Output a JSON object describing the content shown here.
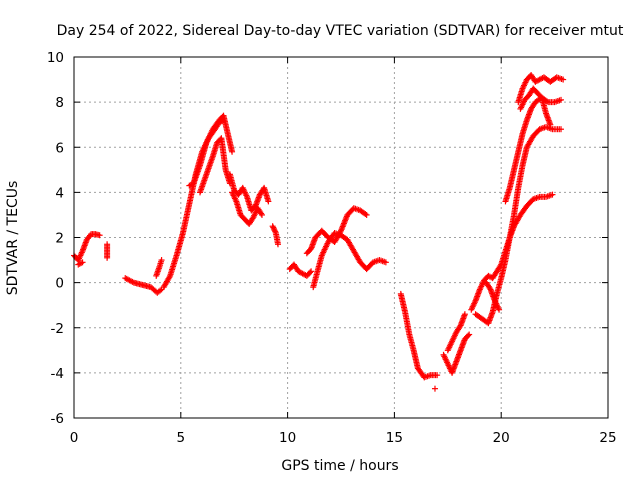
{
  "chart_data": {
    "type": "scatter",
    "title": "Day 254 of 2022, Sidereal Day-to-day VTEC variation (SDTVAR) for receiver mtut",
    "xlabel": "GPS time / hours",
    "ylabel": "SDTVAR / TECUs",
    "xlim": [
      0,
      25
    ],
    "ylim": [
      -6,
      10
    ],
    "x_ticks": [
      0,
      5,
      10,
      15,
      20,
      25
    ],
    "x_tick_labels": [
      "0",
      "5",
      "10",
      "15",
      "20",
      "25"
    ],
    "y_ticks": [
      -6,
      -4,
      -2,
      0,
      2,
      4,
      6,
      8,
      10
    ],
    "y_tick_labels": [
      "-6",
      "-4",
      "-2",
      "0",
      "2",
      "4",
      "6",
      "8",
      "10"
    ],
    "grid": true,
    "marker": "+",
    "color": "#ff0000",
    "series": [
      {
        "name": "s1",
        "points": [
          [
            0.0,
            1.2
          ],
          [
            0.2,
            1.0
          ],
          [
            0.4,
            1.4
          ],
          [
            0.6,
            1.9
          ],
          [
            0.8,
            2.15
          ],
          [
            1.0,
            2.15
          ],
          [
            1.2,
            2.1
          ]
        ]
      },
      {
        "name": "s1b",
        "points": [
          [
            0.2,
            0.8
          ],
          [
            0.4,
            0.9
          ]
        ]
      },
      {
        "name": "s2",
        "points": [
          [
            1.55,
            1.7
          ],
          [
            1.55,
            1.5
          ],
          [
            1.55,
            1.3
          ],
          [
            1.55,
            1.1
          ]
        ]
      },
      {
        "name": "s3",
        "points": [
          [
            2.4,
            0.2
          ],
          [
            2.8,
            0.0
          ],
          [
            3.2,
            -0.1
          ],
          [
            3.6,
            -0.2
          ],
          [
            3.9,
            -0.45
          ],
          [
            4.1,
            -0.3
          ]
        ]
      },
      {
        "name": "s3b",
        "points": [
          [
            3.85,
            0.3
          ],
          [
            4.0,
            0.7
          ],
          [
            4.1,
            1.0
          ]
        ]
      },
      {
        "name": "s4",
        "points": [
          [
            4.2,
            -0.2
          ],
          [
            4.5,
            0.3
          ],
          [
            4.8,
            1.2
          ],
          [
            5.1,
            2.2
          ],
          [
            5.4,
            3.5
          ],
          [
            5.7,
            4.8
          ],
          [
            6.0,
            5.8
          ],
          [
            6.3,
            6.4
          ],
          [
            6.6,
            6.8
          ],
          [
            6.8,
            7.1
          ],
          [
            7.0,
            7.2
          ]
        ]
      },
      {
        "name": "s5",
        "points": [
          [
            5.4,
            4.3
          ],
          [
            5.6,
            4.4
          ],
          [
            5.9,
            5.2
          ],
          [
            6.2,
            6.2
          ],
          [
            6.5,
            6.8
          ],
          [
            6.8,
            7.2
          ],
          [
            7.0,
            7.4
          ],
          [
            7.2,
            6.6
          ],
          [
            7.4,
            5.8
          ]
        ]
      },
      {
        "name": "s6",
        "points": [
          [
            5.9,
            4.0
          ],
          [
            6.2,
            4.8
          ],
          [
            6.5,
            5.6
          ],
          [
            6.7,
            6.2
          ],
          [
            6.9,
            6.4
          ],
          [
            7.1,
            5.0
          ],
          [
            7.3,
            4.4
          ]
        ]
      },
      {
        "name": "s7",
        "points": [
          [
            7.3,
            4.8
          ],
          [
            7.5,
            4.1
          ],
          [
            7.7,
            3.9
          ],
          [
            7.9,
            4.2
          ],
          [
            8.1,
            3.8
          ],
          [
            8.3,
            3.2
          ],
          [
            8.5,
            3.4
          ],
          [
            8.7,
            3.9
          ],
          [
            8.9,
            4.2
          ],
          [
            9.1,
            3.6
          ]
        ]
      },
      {
        "name": "s8",
        "points": [
          [
            7.4,
            4.0
          ],
          [
            7.6,
            3.6
          ],
          [
            7.8,
            3.0
          ],
          [
            8.0,
            2.8
          ],
          [
            8.2,
            2.6
          ],
          [
            8.4,
            2.9
          ],
          [
            8.6,
            3.3
          ],
          [
            8.8,
            3.0
          ]
        ]
      },
      {
        "name": "s9",
        "points": [
          [
            9.3,
            2.5
          ],
          [
            9.45,
            2.2
          ],
          [
            9.55,
            1.7
          ]
        ]
      },
      {
        "name": "s10",
        "points": [
          [
            10.1,
            0.6
          ],
          [
            10.3,
            0.8
          ],
          [
            10.5,
            0.5
          ],
          [
            10.7,
            0.4
          ],
          [
            10.9,
            0.3
          ],
          [
            11.1,
            0.5
          ]
        ]
      },
      {
        "name": "s11",
        "points": [
          [
            10.9,
            1.3
          ],
          [
            11.1,
            1.5
          ],
          [
            11.3,
            2.0
          ],
          [
            11.6,
            2.3
          ],
          [
            11.9,
            2.0
          ],
          [
            12.2,
            1.8
          ],
          [
            12.5,
            2.3
          ],
          [
            12.8,
            3.0
          ],
          [
            13.1,
            3.3
          ],
          [
            13.4,
            3.2
          ],
          [
            13.7,
            3.0
          ]
        ]
      },
      {
        "name": "s12",
        "points": [
          [
            11.2,
            -0.2
          ],
          [
            11.4,
            0.5
          ],
          [
            11.6,
            1.2
          ],
          [
            11.9,
            1.8
          ],
          [
            12.2,
            2.2
          ],
          [
            12.5,
            2.1
          ],
          [
            12.8,
            1.9
          ],
          [
            13.1,
            1.4
          ],
          [
            13.4,
            0.9
          ],
          [
            13.7,
            0.6
          ],
          [
            14.0,
            0.9
          ],
          [
            14.3,
            1.0
          ],
          [
            14.6,
            0.9
          ]
        ]
      },
      {
        "name": "s13",
        "points": [
          [
            15.3,
            -0.5
          ],
          [
            15.5,
            -1.3
          ],
          [
            15.7,
            -2.3
          ],
          [
            15.9,
            -3.0
          ],
          [
            16.1,
            -3.8
          ],
          [
            16.4,
            -4.2
          ],
          [
            16.7,
            -4.1
          ],
          [
            17.0,
            -4.1
          ]
        ]
      },
      {
        "name": "s13b",
        "points": [
          [
            16.9,
            -4.7
          ]
        ]
      },
      {
        "name": "s14",
        "points": [
          [
            17.3,
            -3.2
          ],
          [
            17.5,
            -3.6
          ],
          [
            17.7,
            -4.0
          ],
          [
            17.9,
            -3.5
          ],
          [
            18.1,
            -3.0
          ],
          [
            18.3,
            -2.5
          ],
          [
            18.5,
            -2.3
          ]
        ]
      },
      {
        "name": "s15",
        "points": [
          [
            17.5,
            -3.0
          ],
          [
            17.7,
            -2.6
          ],
          [
            17.9,
            -2.2
          ],
          [
            18.1,
            -1.9
          ],
          [
            18.3,
            -1.4
          ]
        ]
      },
      {
        "name": "s16",
        "points": [
          [
            18.6,
            -1.2
          ],
          [
            18.8,
            -0.8
          ],
          [
            19.0,
            -0.3
          ],
          [
            19.2,
            0.1
          ],
          [
            19.4,
            0.3
          ],
          [
            19.6,
            0.2
          ],
          [
            19.8,
            0.5
          ],
          [
            20.0,
            0.8
          ],
          [
            20.2,
            1.4
          ],
          [
            20.4,
            2.0
          ],
          [
            20.6,
            2.5
          ],
          [
            20.9,
            3.0
          ],
          [
            21.2,
            3.4
          ],
          [
            21.5,
            3.7
          ],
          [
            21.8,
            3.8
          ],
          [
            22.1,
            3.8
          ],
          [
            22.4,
            3.9
          ]
        ]
      },
      {
        "name": "s17",
        "points": [
          [
            18.8,
            -1.4
          ],
          [
            19.1,
            -1.6
          ],
          [
            19.4,
            -1.8
          ],
          [
            19.6,
            -1.3
          ],
          [
            19.8,
            -0.5
          ],
          [
            20.0,
            0.2
          ],
          [
            20.2,
            1.0
          ],
          [
            20.4,
            2.0
          ],
          [
            20.6,
            3.0
          ],
          [
            20.8,
            4.2
          ],
          [
            21.0,
            5.2
          ],
          [
            21.2,
            6.0
          ],
          [
            21.5,
            6.5
          ],
          [
            21.8,
            6.8
          ],
          [
            22.1,
            6.9
          ],
          [
            22.4,
            6.8
          ],
          [
            22.8,
            6.8
          ]
        ]
      },
      {
        "name": "s18",
        "points": [
          [
            20.2,
            3.6
          ],
          [
            20.4,
            4.2
          ],
          [
            20.6,
            5.0
          ],
          [
            20.8,
            5.8
          ],
          [
            21.0,
            6.6
          ],
          [
            21.2,
            7.2
          ],
          [
            21.4,
            7.7
          ],
          [
            21.6,
            8.0
          ],
          [
            21.9,
            8.2
          ],
          [
            22.2,
            8.0
          ],
          [
            22.5,
            8.0
          ],
          [
            22.8,
            8.1
          ]
        ]
      },
      {
        "name": "s19",
        "points": [
          [
            20.8,
            8.0
          ],
          [
            21.0,
            8.6
          ],
          [
            21.2,
            9.0
          ],
          [
            21.4,
            9.2
          ],
          [
            21.6,
            8.9
          ],
          [
            21.8,
            9.0
          ],
          [
            22.0,
            9.1
          ],
          [
            22.3,
            8.9
          ],
          [
            22.6,
            9.1
          ],
          [
            22.9,
            9.0
          ]
        ]
      },
      {
        "name": "s20",
        "points": [
          [
            20.9,
            7.7
          ],
          [
            21.1,
            8.1
          ],
          [
            21.3,
            8.3
          ],
          [
            21.5,
            8.6
          ],
          [
            21.7,
            8.4
          ],
          [
            21.9,
            8.2
          ],
          [
            22.1,
            7.5
          ],
          [
            22.3,
            7.0
          ]
        ]
      },
      {
        "name": "s21",
        "points": [
          [
            19.3,
            0.0
          ],
          [
            19.5,
            -0.3
          ],
          [
            19.7,
            -0.8
          ],
          [
            19.9,
            -1.2
          ]
        ]
      }
    ]
  }
}
